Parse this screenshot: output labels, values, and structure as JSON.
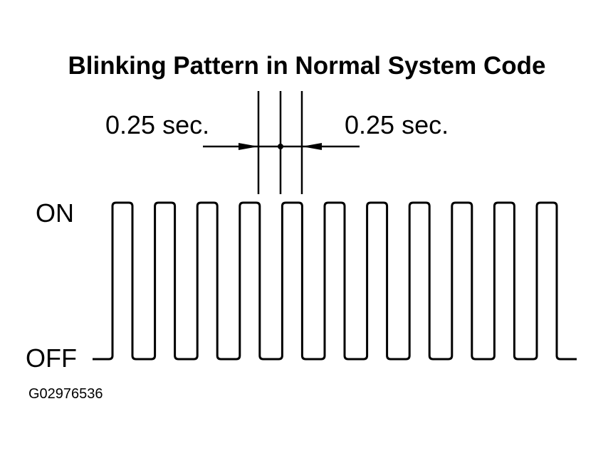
{
  "title": "Blinking Pattern in Normal System Code",
  "interval_labels": [
    "0.25 sec.",
    "0.25 sec."
  ],
  "levels": {
    "on": "ON",
    "off": "OFF"
  },
  "figure_id": "G02976536"
}
